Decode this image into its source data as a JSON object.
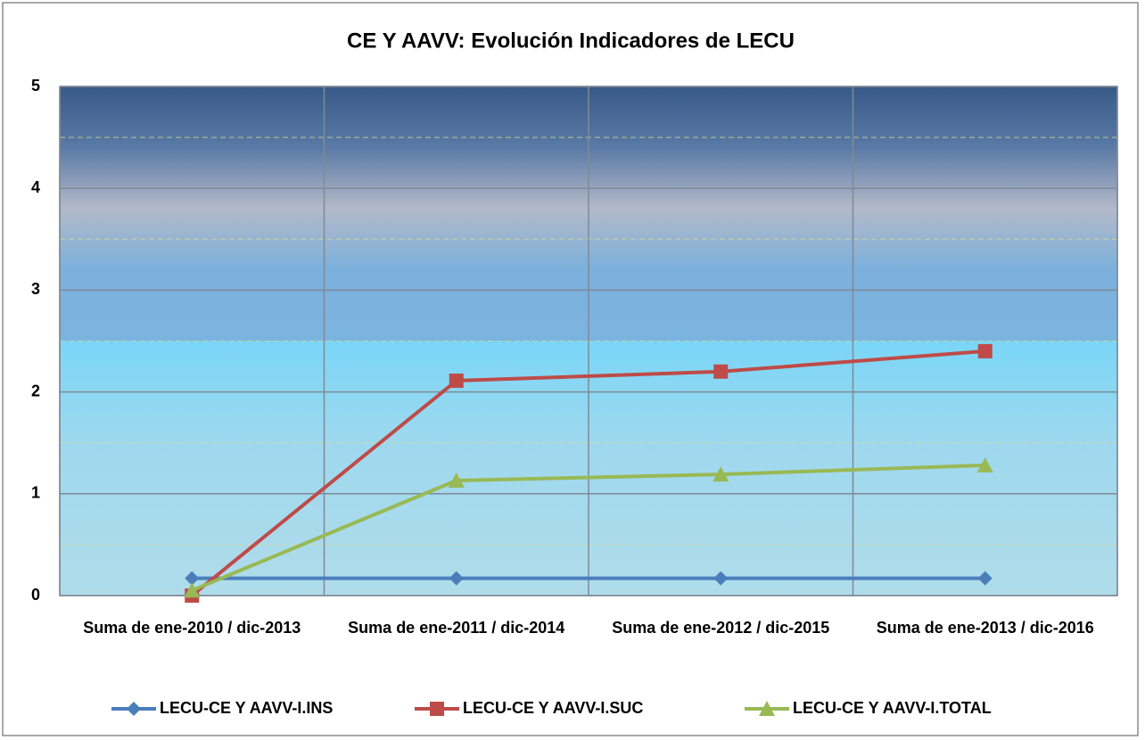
{
  "chart_data": {
    "type": "line",
    "title": "CE Y AAVV: Evolución Indicadores de LECU",
    "categories": [
      "Suma de ene-2010 / dic-2013",
      "Suma de ene-2011 / dic-2014",
      "Suma de ene-2012 / dic-2015",
      "Suma de ene-2013 / dic-2016"
    ],
    "series": [
      {
        "name": "LECU-CE Y AAVV-I.INS",
        "color": "#4a7ebb",
        "marker": "diamond",
        "values": [
          0.17,
          0.17,
          0.17,
          0.17
        ]
      },
      {
        "name": "LECU-CE Y AAVV-I.SUC",
        "color": "#be4b48",
        "marker": "square",
        "values": [
          0,
          2.11,
          2.2,
          2.4
        ]
      },
      {
        "name": "LECU-CE Y AAVV-I.TOTAL",
        "color": "#98b954",
        "marker": "triangle",
        "values": [
          0.05,
          1.13,
          1.19,
          1.28
        ]
      }
    ],
    "ylim": [
      0,
      5
    ],
    "yticks": [
      0,
      1,
      2,
      3,
      4,
      5
    ],
    "grid": true,
    "legend": "bottom"
  }
}
